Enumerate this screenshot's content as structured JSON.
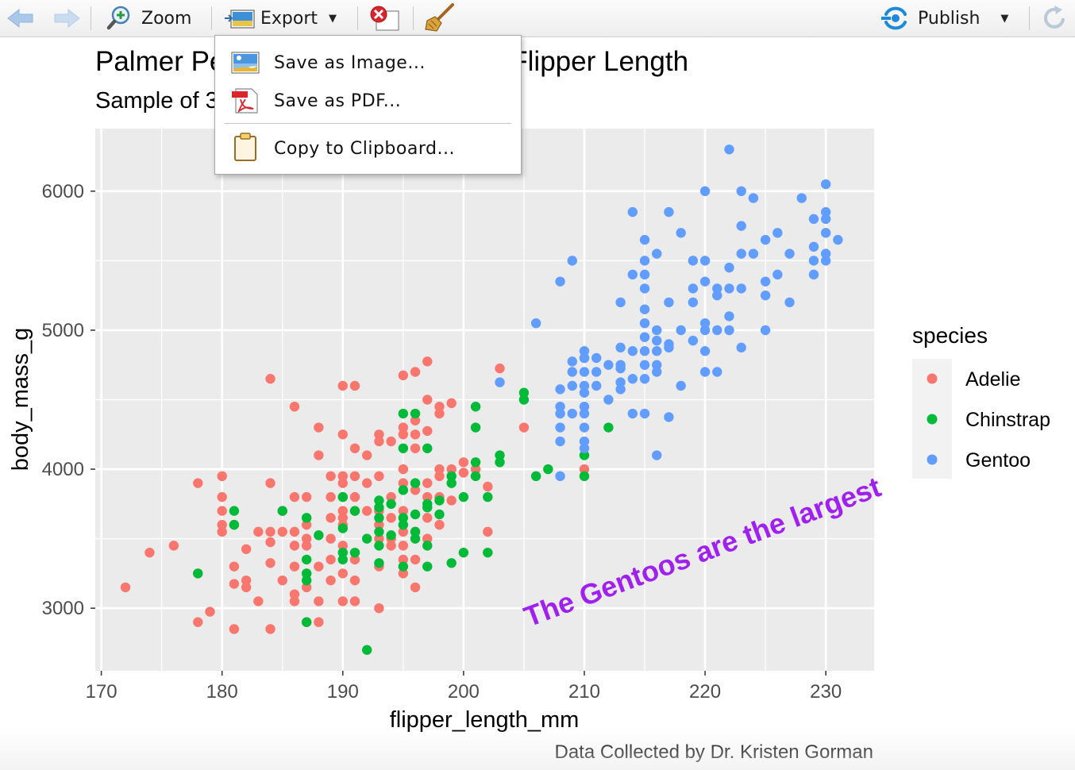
{
  "toolbar": {
    "back_icon": "arrow-left-icon",
    "forward_icon": "arrow-right-icon",
    "zoom_label": "Zoom",
    "export_label": "Export",
    "remove_icon": "remove-plot-icon",
    "clear_icon": "broom-icon",
    "publish_label": "Publish",
    "refresh_icon": "refresh-icon"
  },
  "export_menu": {
    "items": [
      {
        "label": "Save as Image...",
        "icon": "image-icon"
      },
      {
        "label": "Save as PDF...",
        "icon": "pdf-icon"
      },
      {
        "label": "Copy to Clipboard...",
        "icon": "clipboard-icon"
      }
    ]
  },
  "plot": {
    "title": "Palmer Penguins: Body Mass vs. Flipper Length",
    "subtitle": "Sample of 3 penguin species",
    "caption": "Data Collected by Dr. Kristen Gorman",
    "annotation": "The Gentoos are the largest",
    "annotation_color": "#a020f0"
  },
  "chart_data": {
    "type": "scatter",
    "xlabel": "flipper_length_mm",
    "ylabel": "body_mass_g",
    "xlim": [
      169.5,
      234
    ],
    "ylim": [
      2550,
      6450
    ],
    "x_ticks": [
      170,
      180,
      190,
      200,
      210,
      220,
      230
    ],
    "y_ticks": [
      3000,
      4000,
      5000,
      6000
    ],
    "legend_title": "species",
    "legend_position": "right",
    "grid": true,
    "series": [
      {
        "name": "Adelie",
        "color": "#f8766d",
        "points": [
          [
            172,
            3150
          ],
          [
            174,
            3400
          ],
          [
            176,
            3450
          ],
          [
            178,
            3900
          ],
          [
            178,
            2900
          ],
          [
            178,
            3250
          ],
          [
            179,
            2975
          ],
          [
            180,
            3950
          ],
          [
            180,
            3800
          ],
          [
            180,
            3700
          ],
          [
            180,
            3600
          ],
          [
            180,
            3550
          ],
          [
            181,
            2850
          ],
          [
            181,
            3300
          ],
          [
            181,
            3175
          ],
          [
            181,
            3600
          ],
          [
            182,
            3425
          ],
          [
            182,
            3200
          ],
          [
            182,
            3150
          ],
          [
            183,
            3050
          ],
          [
            183,
            3550
          ],
          [
            184,
            4650
          ],
          [
            184,
            3900
          ],
          [
            184,
            3550
          ],
          [
            184,
            3475
          ],
          [
            184,
            3325
          ],
          [
            184,
            2850
          ],
          [
            185,
            3700
          ],
          [
            185,
            3200
          ],
          [
            185,
            3550
          ],
          [
            186,
            4450
          ],
          [
            186,
            3800
          ],
          [
            186,
            3550
          ],
          [
            186,
            3450
          ],
          [
            186,
            3300
          ],
          [
            186,
            3100
          ],
          [
            186,
            3050
          ],
          [
            187,
            3600
          ],
          [
            187,
            3500
          ],
          [
            187,
            3450
          ],
          [
            187,
            3250
          ],
          [
            187,
            3150
          ],
          [
            187,
            2900
          ],
          [
            187,
            3800
          ],
          [
            188,
            4300
          ],
          [
            188,
            4100
          ],
          [
            188,
            3300
          ],
          [
            188,
            3050
          ],
          [
            188,
            2900
          ],
          [
            189,
            3950
          ],
          [
            189,
            3800
          ],
          [
            189,
            3650
          ],
          [
            189,
            3500
          ],
          [
            189,
            3350
          ],
          [
            189,
            3200
          ],
          [
            190,
            4600
          ],
          [
            190,
            4250
          ],
          [
            190,
            3950
          ],
          [
            190,
            3900
          ],
          [
            190,
            3800
          ],
          [
            190,
            3700
          ],
          [
            190,
            3650
          ],
          [
            190,
            3600
          ],
          [
            190,
            3450
          ],
          [
            190,
            3250
          ],
          [
            190,
            3050
          ],
          [
            191,
            4600
          ],
          [
            191,
            4150
          ],
          [
            191,
            3950
          ],
          [
            191,
            3800
          ],
          [
            191,
            3700
          ],
          [
            191,
            3350
          ],
          [
            191,
            3200
          ],
          [
            191,
            3050
          ],
          [
            192,
            4100
          ],
          [
            192,
            3900
          ],
          [
            192,
            3700
          ],
          [
            193,
            4250
          ],
          [
            193,
            4200
          ],
          [
            193,
            3950
          ],
          [
            193,
            3700
          ],
          [
            193,
            3600
          ],
          [
            193,
            3500
          ],
          [
            193,
            3300
          ],
          [
            193,
            3000
          ],
          [
            194,
            4200
          ],
          [
            194,
            3800
          ],
          [
            194,
            3650
          ],
          [
            194,
            3500
          ],
          [
            194,
            3450
          ],
          [
            195,
            4675
          ],
          [
            195,
            4300
          ],
          [
            195,
            4250
          ],
          [
            195,
            4000
          ],
          [
            195,
            3900
          ],
          [
            195,
            3700
          ],
          [
            195,
            3550
          ],
          [
            195,
            3450
          ],
          [
            195,
            3350
          ],
          [
            195,
            3250
          ],
          [
            196,
            4700
          ],
          [
            196,
            4350
          ],
          [
            196,
            4250
          ],
          [
            196,
            4150
          ],
          [
            196,
            3850
          ],
          [
            196,
            3550
          ],
          [
            196,
            3350
          ],
          [
            196,
            3150
          ],
          [
            197,
            4775
          ],
          [
            197,
            4500
          ],
          [
            197,
            4275
          ],
          [
            197,
            3900
          ],
          [
            197,
            3800
          ],
          [
            197,
            3650
          ],
          [
            197,
            3500
          ],
          [
            198,
            4450
          ],
          [
            198,
            4400
          ],
          [
            198,
            4000
          ],
          [
            198,
            3950
          ],
          [
            198,
            3800
          ],
          [
            198,
            3600
          ],
          [
            199,
            4475
          ],
          [
            199,
            4000
          ],
          [
            199,
            3775
          ],
          [
            200,
            4050
          ],
          [
            200,
            3975
          ],
          [
            201,
            4000
          ],
          [
            202,
            3875
          ],
          [
            202,
            3550
          ],
          [
            203,
            4725
          ],
          [
            205,
            4300
          ],
          [
            210,
            4000
          ]
        ]
      },
      {
        "name": "Chinstrap",
        "color": "#00ba38",
        "points": [
          [
            178,
            3250
          ],
          [
            181,
            3700
          ],
          [
            181,
            3600
          ],
          [
            185,
            3700
          ],
          [
            187,
            3650
          ],
          [
            187,
            3350
          ],
          [
            187,
            3250
          ],
          [
            187,
            3200
          ],
          [
            187,
            2900
          ],
          [
            188,
            3525
          ],
          [
            190,
            3800
          ],
          [
            190,
            3575
          ],
          [
            190,
            3400
          ],
          [
            190,
            3350
          ],
          [
            191,
            3700
          ],
          [
            191,
            3400
          ],
          [
            192,
            3500
          ],
          [
            192,
            2700
          ],
          [
            193,
            3775
          ],
          [
            193,
            3725
          ],
          [
            193,
            3650
          ],
          [
            193,
            3550
          ],
          [
            193,
            3450
          ],
          [
            193,
            3325
          ],
          [
            194,
            3750
          ],
          [
            194,
            3525
          ],
          [
            195,
            4400
          ],
          [
            195,
            4150
          ],
          [
            195,
            3850
          ],
          [
            195,
            3650
          ],
          [
            195,
            3600
          ],
          [
            195,
            3300
          ],
          [
            196,
            4400
          ],
          [
            196,
            3900
          ],
          [
            196,
            3675
          ],
          [
            196,
            3550
          ],
          [
            196,
            3500
          ],
          [
            197,
            4150
          ],
          [
            197,
            3750
          ],
          [
            197,
            3725
          ],
          [
            197,
            3450
          ],
          [
            197,
            3300
          ],
          [
            198,
            3775
          ],
          [
            198,
            3675
          ],
          [
            199,
            3950
          ],
          [
            199,
            3900
          ],
          [
            199,
            3325
          ],
          [
            200,
            3800
          ],
          [
            200,
            3400
          ],
          [
            201,
            4450
          ],
          [
            201,
            4300
          ],
          [
            201,
            4050
          ],
          [
            201,
            3950
          ],
          [
            202,
            3800
          ],
          [
            202,
            3400
          ],
          [
            203,
            4100
          ],
          [
            203,
            4050
          ],
          [
            205,
            4550
          ],
          [
            205,
            4500
          ],
          [
            206,
            3950
          ],
          [
            207,
            4000
          ],
          [
            210,
            4800
          ],
          [
            210,
            4100
          ],
          [
            210,
            3950
          ],
          [
            212,
            4300
          ]
        ]
      },
      {
        "name": "Gentoo",
        "color": "#619cff",
        "points": [
          [
            203,
            4625
          ],
          [
            206,
            5050
          ],
          [
            208,
            4400
          ],
          [
            208,
            3950
          ],
          [
            208,
            4200
          ],
          [
            208,
            4300
          ],
          [
            208,
            4450
          ],
          [
            208,
            4575
          ],
          [
            208,
            5350
          ],
          [
            209,
            4700
          ],
          [
            209,
            4600
          ],
          [
            209,
            4400
          ],
          [
            209,
            4775
          ],
          [
            209,
            5500
          ],
          [
            210,
            4850
          ],
          [
            210,
            4800
          ],
          [
            210,
            4700
          ],
          [
            210,
            4600
          ],
          [
            210,
            4550
          ],
          [
            210,
            4450
          ],
          [
            210,
            4400
          ],
          [
            210,
            4300
          ],
          [
            210,
            4200
          ],
          [
            210,
            4150
          ],
          [
            211,
            4800
          ],
          [
            211,
            4700
          ],
          [
            211,
            4600
          ],
          [
            212,
            4750
          ],
          [
            212,
            4500
          ],
          [
            213,
            4875
          ],
          [
            213,
            4750
          ],
          [
            213,
            4725
          ],
          [
            213,
            4625
          ],
          [
            213,
            4575
          ],
          [
            213,
            5200
          ],
          [
            214,
            4850
          ],
          [
            214,
            4650
          ],
          [
            214,
            4400
          ],
          [
            214,
            5400
          ],
          [
            214,
            5850
          ],
          [
            215,
            5650
          ],
          [
            215,
            5500
          ],
          [
            215,
            5400
          ],
          [
            215,
            5300
          ],
          [
            215,
            5150
          ],
          [
            215,
            5050
          ],
          [
            215,
            4950
          ],
          [
            215,
            4850
          ],
          [
            215,
            4750
          ],
          [
            215,
            4650
          ],
          [
            215,
            4400
          ],
          [
            216,
            5550
          ],
          [
            216,
            5000
          ],
          [
            216,
            4925
          ],
          [
            216,
            4850
          ],
          [
            216,
            4750
          ],
          [
            216,
            4700
          ],
          [
            216,
            4100
          ],
          [
            217,
            5850
          ],
          [
            217,
            5200
          ],
          [
            217,
            4900
          ],
          [
            217,
            4875
          ],
          [
            217,
            4375
          ],
          [
            218,
            5700
          ],
          [
            218,
            5000
          ],
          [
            218,
            4600
          ],
          [
            219,
            5300
          ],
          [
            219,
            5200
          ],
          [
            219,
            4925
          ],
          [
            220,
            5500
          ],
          [
            220,
            5350
          ],
          [
            220,
            5050
          ],
          [
            220,
            5000
          ],
          [
            220,
            4850
          ],
          [
            220,
            4700
          ],
          [
            221,
            5300
          ],
          [
            221,
            5250
          ],
          [
            221,
            5000
          ],
          [
            221,
            4700
          ],
          [
            222,
            6300
          ],
          [
            222,
            5450
          ],
          [
            222,
            5300
          ],
          [
            222,
            5100
          ],
          [
            222,
            5000
          ],
          [
            223,
            6000
          ],
          [
            223,
            5750
          ],
          [
            223,
            5550
          ],
          [
            223,
            5300
          ],
          [
            223,
            4875
          ],
          [
            224,
            5950
          ],
          [
            224,
            5550
          ],
          [
            225,
            5650
          ],
          [
            225,
            5350
          ],
          [
            225,
            5250
          ],
          [
            225,
            5000
          ],
          [
            226,
            5700
          ],
          [
            226,
            5400
          ],
          [
            227,
            5200
          ],
          [
            229,
            5800
          ],
          [
            229,
            5600
          ],
          [
            229,
            5500
          ],
          [
            229,
            5400
          ],
          [
            230,
            6050
          ],
          [
            230,
            5850
          ],
          [
            230,
            5800
          ],
          [
            230,
            5700
          ],
          [
            230,
            5550
          ],
          [
            230,
            5500
          ],
          [
            231,
            5650
          ],
          [
            227,
            5550
          ],
          [
            228,
            5950
          ],
          [
            220,
            6000
          ],
          [
            219,
            5500
          ]
        ]
      }
    ]
  }
}
